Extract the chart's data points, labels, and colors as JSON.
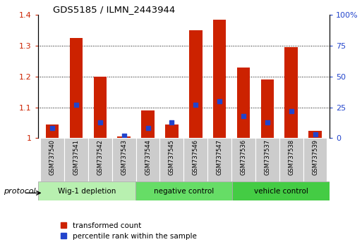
{
  "title": "GDS5185 / ILMN_2443944",
  "samples": [
    "GSM737540",
    "GSM737541",
    "GSM737542",
    "GSM737543",
    "GSM737544",
    "GSM737545",
    "GSM737546",
    "GSM737547",
    "GSM737536",
    "GSM737537",
    "GSM737538",
    "GSM737539"
  ],
  "red_values": [
    1.045,
    1.325,
    1.2,
    1.005,
    1.09,
    1.045,
    1.35,
    1.385,
    1.23,
    1.19,
    1.295,
    1.025
  ],
  "blue_pct": [
    8,
    27,
    13,
    2,
    8,
    13,
    27,
    30,
    18,
    13,
    22,
    3
  ],
  "groups": [
    {
      "label": "Wig-1 depletion",
      "start": 0,
      "end": 4,
      "color": "#b8f0b0"
    },
    {
      "label": "negative control",
      "start": 4,
      "end": 8,
      "color": "#66dd66"
    },
    {
      "label": "vehicle control",
      "start": 8,
      "end": 12,
      "color": "#44cc44"
    }
  ],
  "bar_color": "#cc2200",
  "blue_color": "#2244cc",
  "ylim_left": [
    1.0,
    1.4
  ],
  "ylim_right": [
    0,
    100
  ],
  "yticks_left": [
    1.0,
    1.1,
    1.2,
    1.3,
    1.4
  ],
  "ytick_labels_left": [
    "1",
    "1.1",
    "1.2",
    "1.3",
    "1.4"
  ],
  "yticks_right": [
    0,
    25,
    50,
    75,
    100
  ],
  "ytick_labels_right": [
    "0",
    "25",
    "50",
    "75",
    "100%"
  ],
  "left_axis_color": "#cc2200",
  "right_axis_color": "#2244cc",
  "bar_width": 0.55,
  "protocol_label": "protocol",
  "legend_red": "transformed count",
  "legend_blue": "percentile rank within the sample",
  "sample_box_color": "#cccccc",
  "grid_lines": [
    1.1,
    1.2,
    1.3
  ]
}
